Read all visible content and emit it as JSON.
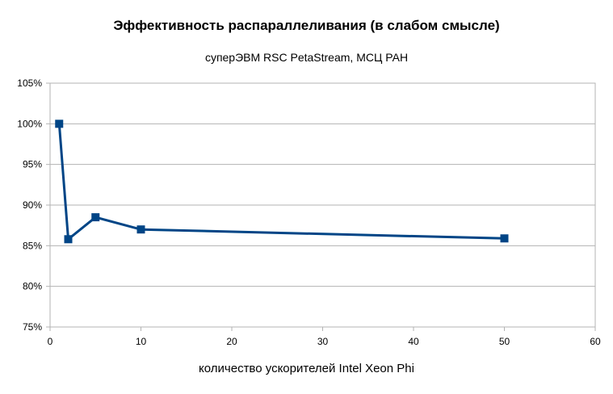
{
  "chart_data": {
    "type": "line",
    "title": "Эффективность распараллеливания (в слабом смысле)",
    "subtitle": "суперЭВМ RSC PetaStream, МСЦ РАН",
    "xlabel": "количество ускорителей Intel Xeon Phi",
    "ylabel": "",
    "xlim": [
      0,
      60
    ],
    "ylim": [
      0.75,
      1.05
    ],
    "x_ticks": [
      0,
      10,
      20,
      30,
      40,
      50,
      60
    ],
    "y_ticks": [
      0.75,
      0.8,
      0.85,
      0.9,
      0.95,
      1.0,
      1.05
    ],
    "y_tick_labels": [
      "75%",
      "80%",
      "85%",
      "90%",
      "95%",
      "100%",
      "105%"
    ],
    "grid": {
      "horizontal": true,
      "vertical": false
    },
    "legend": "none",
    "series": [
      {
        "color": "#004586",
        "marker": "square",
        "x": [
          1,
          2,
          5,
          10,
          50
        ],
        "y": [
          1.0,
          0.858,
          0.885,
          0.87,
          0.859
        ]
      }
    ]
  }
}
